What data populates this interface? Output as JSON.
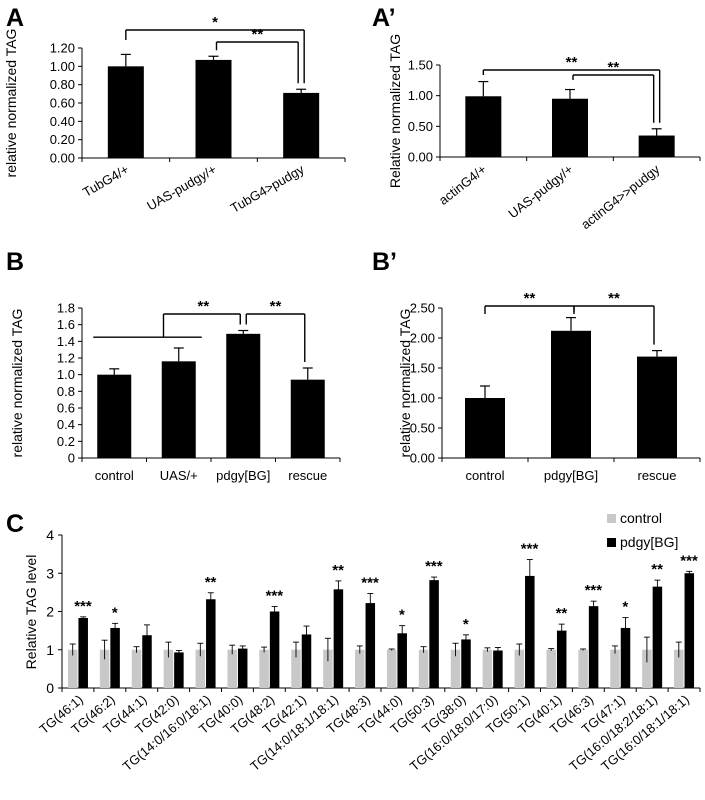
{
  "panels": {
    "A": "A",
    "A2": "A’",
    "B": "B",
    "B2": "B’",
    "C": "C"
  },
  "chart_data": [
    {
      "id": "A",
      "type": "bar",
      "categories": [
        "TubG4/+",
        "UAS-pudgy/+",
        "TubG4>pudgy"
      ],
      "values": [
        1.0,
        1.07,
        0.71
      ],
      "errors": [
        0.13,
        0.04,
        0.04
      ],
      "ylabel": "relative normalized TAG",
      "ylim": [
        0,
        1.2
      ],
      "yticks": [
        0,
        0.2,
        0.4,
        0.6,
        0.8,
        1.0,
        1.2
      ],
      "ytick_labels": [
        "0.00",
        "0.20",
        "0.40",
        "0.60",
        "0.80",
        "1.00",
        "1.20"
      ],
      "significance": [
        {
          "from": 0,
          "to": 2,
          "label": "*"
        },
        {
          "from": 1,
          "to": 2,
          "label": "**"
        }
      ]
    },
    {
      "id": "A2",
      "type": "bar",
      "categories": [
        "actinG4/+",
        "UAS-pudgy/+",
        "actinG4>>pudgy"
      ],
      "values": [
        0.99,
        0.95,
        0.35
      ],
      "errors": [
        0.24,
        0.15,
        0.11
      ],
      "ylabel": "Relative normalized TAG",
      "ylim": [
        0,
        1.5
      ],
      "yticks": [
        0,
        0.5,
        1.0,
        1.5
      ],
      "ytick_labels": [
        "0.00",
        "0.50",
        "1.00",
        "1.50"
      ],
      "significance": [
        {
          "from": 0,
          "to": 2,
          "label": "**"
        },
        {
          "from": 1,
          "to": 2,
          "label": "**"
        }
      ]
    },
    {
      "id": "B",
      "type": "bar",
      "categories": [
        "control",
        "UAS/+",
        "pdgy[BG]",
        "rescue"
      ],
      "values": [
        1.0,
        1.16,
        1.49,
        0.94
      ],
      "errors": [
        0.07,
        0.16,
        0.04,
        0.14
      ],
      "ylabel": "relative normalized TAG",
      "ylim": [
        0,
        1.8
      ],
      "yticks": [
        0,
        0.2,
        0.4,
        0.6,
        0.8,
        1.0,
        1.2,
        1.4,
        1.6,
        1.8
      ],
      "ytick_labels": [
        "0",
        "0.2",
        "0.4",
        "0.6",
        "0.8",
        "1.0",
        "1.2",
        "1.4",
        "1.6",
        "1.8"
      ],
      "significance": [
        {
          "from": [
            0,
            1
          ],
          "to": 2,
          "label": "**"
        },
        {
          "from": 2,
          "to": 3,
          "label": "**"
        }
      ]
    },
    {
      "id": "B2",
      "type": "bar",
      "categories": [
        "control",
        "pdgy[BG]",
        "rescue"
      ],
      "values": [
        1.0,
        2.12,
        1.69
      ],
      "errors": [
        0.2,
        0.22,
        0.1
      ],
      "ylabel": "relative normalized TAG",
      "ylim": [
        0,
        2.5
      ],
      "yticks": [
        0,
        0.5,
        1.0,
        1.5,
        2.0,
        2.5
      ],
      "ytick_labels": [
        "0.00",
        "0.50",
        "1.00",
        "1.50",
        "2.00",
        "2.50"
      ],
      "significance": [
        {
          "from": 0,
          "to": 1,
          "label": "**"
        },
        {
          "from": 1,
          "to": 2,
          "label": "**"
        }
      ]
    },
    {
      "id": "C",
      "type": "bar",
      "categories": [
        "TG(46:1)",
        "TG(46:2)",
        "TG(44:1)",
        "TG(42:0)",
        "TG(14:0/16:0/18:1)",
        "TG(40:0)",
        "TG(48:2)",
        "TG(42:1)",
        "TG(14:0/18:1/18:1)",
        "TG(48:3)",
        "TG(44:0)",
        "TG(50:3)",
        "TG(38:0)",
        "TG(16:0/18:0/17:0)",
        "TG(50:1)",
        "TG(40:1)",
        "TG(46:3)",
        "TG(47:1)",
        "TG(16:0/18:2/18:1)",
        "TG(16:0/18:1/18:1)"
      ],
      "ylabel": "Relative TAG level",
      "ylim": [
        0,
        4
      ],
      "yticks": [
        0,
        1,
        2,
        3,
        4
      ],
      "ytick_labels": [
        "0",
        "1",
        "2",
        "3",
        "4"
      ],
      "series": [
        {
          "name": "control",
          "color": "#c8c8c8",
          "values": [
            1,
            1,
            1,
            1,
            1,
            1,
            1,
            1,
            1,
            1,
            1,
            1,
            1,
            1,
            1,
            1,
            1,
            1,
            1,
            1
          ],
          "errors": [
            0.15,
            0.25,
            0.08,
            0.2,
            0.17,
            0.12,
            0.07,
            0.2,
            0.3,
            0.1,
            0.02,
            0.08,
            0.17,
            0.05,
            0.15,
            0.03,
            0.02,
            0.1,
            0.33,
            0.2
          ]
        },
        {
          "name": "pdgy[BG]",
          "color": "#000000",
          "values": [
            1.83,
            1.57,
            1.38,
            0.93,
            2.32,
            1.03,
            2.0,
            1.4,
            2.58,
            2.22,
            1.43,
            2.82,
            1.27,
            0.98,
            2.93,
            1.5,
            2.14,
            1.57,
            2.65,
            3.0
          ],
          "errors": [
            0.03,
            0.12,
            0.27,
            0.05,
            0.17,
            0.07,
            0.13,
            0.22,
            0.22,
            0.25,
            0.2,
            0.08,
            0.12,
            0.08,
            0.43,
            0.17,
            0.13,
            0.27,
            0.17,
            0.05
          ]
        }
      ],
      "significance": [
        "***",
        "*",
        "",
        "",
        "**",
        "",
        "***",
        "",
        "**",
        "***",
        "*",
        "***",
        "*",
        "",
        "***",
        "**",
        "***",
        "*",
        "**",
        "***"
      ],
      "legend_position": "top-right"
    }
  ]
}
